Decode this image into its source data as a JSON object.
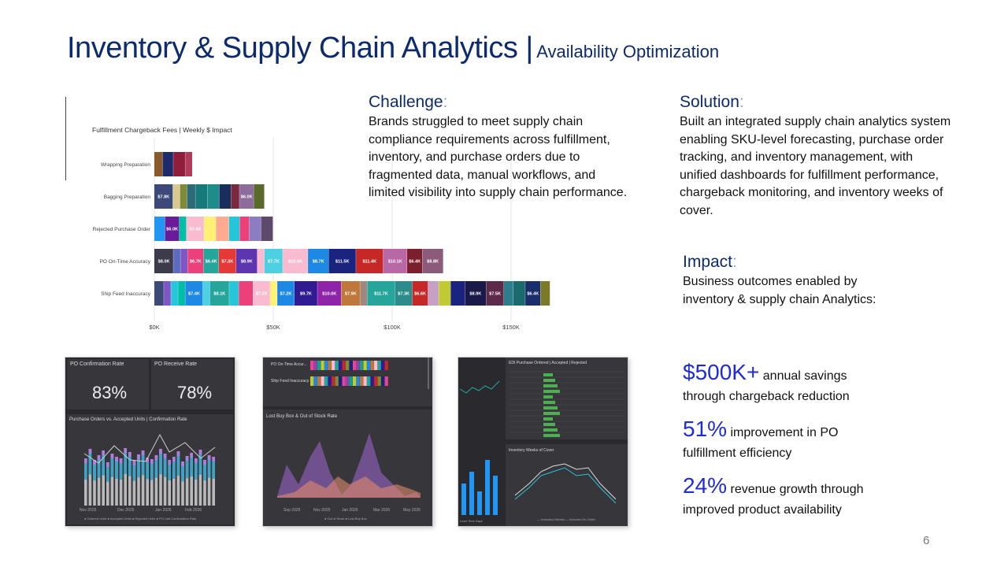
{
  "title": {
    "main": "Inventory & Supply Chain Analytics |",
    "sub": "Availability Optimization"
  },
  "challenge": {
    "heading": "Challenge",
    "colon": ":",
    "body": "Brands struggled to meet supply chain compliance requirements across fulfillment, inventory, and purchase orders due to fragmented data, manual workflows, and limited visibility into supply chain performance."
  },
  "solution": {
    "heading": "Solution",
    "colon": ":",
    "body": "Built an integrated supply chain analytics system enabling SKU-level forecasting, purchase order tracking, and inventory management, with unified dashboards for fulfillment performance, chargeback monitoring, and inventory weeks of cover."
  },
  "impact": {
    "heading": "Impact",
    "colon": ":",
    "body_line1": "Business outcomes enabled by",
    "body_line2": "inventory & supply chain Analytics:"
  },
  "stats": [
    {
      "big": "$500K+",
      "small1": " annual savings",
      "small2": "through chargeback reduction"
    },
    {
      "big": "51%",
      "small1": " improvement in PO",
      "small2": "fulfillment efficiency"
    },
    {
      "big": "24%",
      "small1": " revenue growth through",
      "small2": "improved product availability"
    }
  ],
  "page_number": "6",
  "chart_data": {
    "type": "bar",
    "title": "Fulfillment Chargeback Fees | Weekly $ Impact",
    "categories": [
      "Wrapping Preparation",
      "Bagging Preparation",
      "Rejected Purchase Order",
      "PO On-Time Accuracy",
      "Ship Feed Inaccuracy"
    ],
    "xticks": [
      "$0K",
      "$50K",
      "$100K",
      "$150K"
    ],
    "xlim": [
      0,
      180
    ],
    "stacked": true,
    "palette": [
      "#3e4a6b",
      "#7a5c2e",
      "#2a2f7a",
      "#c0392b",
      "#e84393",
      "#f4d03f",
      "#1abc9c",
      "#8e44ad",
      "#2980b9",
      "#16a085",
      "#f39c12",
      "#34495e",
      "#9b59b6",
      "#55efc4",
      "#fd79a8",
      "#6c5ce7",
      "#00b894",
      "#e17055",
      "#a29bfe",
      "#d35400",
      "#7f8c8d",
      "#27ae60",
      "#c44569",
      "#3d3d6b",
      "#b33939",
      "#218c74",
      "#cc8e35",
      "#706fd3",
      "#474787",
      "#40407a",
      "#2c2c54",
      "#84817a"
    ],
    "rows": [
      {
        "segments": [
          {
            "v": 3.5,
            "c": "#8b5a2b",
            "l": ""
          },
          {
            "v": 4.5,
            "c": "#1f2a6b",
            "l": ""
          },
          {
            "v": 5,
            "c": "#8e1e3c",
            "l": ""
          },
          {
            "v": 3,
            "c": "#b03a5a",
            "l": ""
          }
        ]
      },
      {
        "segments": [
          {
            "v": 7.8,
            "c": "#3c4a7a",
            "l": "$7.8K"
          },
          {
            "v": 3,
            "c": "#d9c98f",
            "l": ""
          },
          {
            "v": 3,
            "c": "#7e8c3a",
            "l": ""
          },
          {
            "v": 3.5,
            "c": "#2d6a7a",
            "l": ""
          },
          {
            "v": 5,
            "c": "#167a7a",
            "l": ""
          },
          {
            "v": 5,
            "c": "#1f8c8c",
            "l": ""
          },
          {
            "v": 5,
            "c": "#1a2e5c",
            "l": ""
          },
          {
            "v": 3.5,
            "c": "#7a2a3c",
            "l": ""
          },
          {
            "v": 6,
            "c": "#8c6c9c",
            "l": "$6.0K"
          },
          {
            "v": 4.5,
            "c": "#5a6a2a",
            "l": ""
          }
        ]
      },
      {
        "segments": [
          {
            "v": 4.5,
            "c": "#2196f3",
            "l": ""
          },
          {
            "v": 6,
            "c": "#6a1b9a",
            "l": "$6.0K"
          },
          {
            "v": 3,
            "c": "#00bfa5",
            "l": ""
          },
          {
            "v": 7.4,
            "c": "#f8bbd0",
            "l": "$7.4K"
          },
          {
            "v": 5,
            "c": "#fff176",
            "l": ""
          },
          {
            "v": 5.5,
            "c": "#ffab91",
            "l": ""
          },
          {
            "v": 4.5,
            "c": "#26c6da",
            "l": ""
          },
          {
            "v": 4,
            "c": "#ec407a",
            "l": ""
          },
          {
            "v": 5,
            "c": "#8e7cc3",
            "l": ""
          },
          {
            "v": 5,
            "c": "#5d4a6b",
            "l": ""
          }
        ]
      },
      {
        "segments": [
          {
            "v": 8,
            "c": "#3b3b4b",
            "l": "$8.0K"
          },
          {
            "v": 3,
            "c": "#5c6bc0",
            "l": ""
          },
          {
            "v": 3,
            "c": "#7e57c2",
            "l": ""
          },
          {
            "v": 6.7,
            "c": "#ec407a",
            "l": "$6.7K"
          },
          {
            "v": 6.4,
            "c": "#26a69a",
            "l": "$6.4K"
          },
          {
            "v": 7.3,
            "c": "#e53935",
            "l": "$7.3K"
          },
          {
            "v": 8.9,
            "c": "#5e35b1",
            "l": "$8.9K"
          },
          {
            "v": 3,
            "c": "#f8bbd0",
            "l": ""
          },
          {
            "v": 7.7,
            "c": "#4dd0e1",
            "l": "$7.7K"
          },
          {
            "v": 10.6,
            "c": "#f8bbd0",
            "l": "$10.6K"
          },
          {
            "v": 8.7,
            "c": "#1e88e5",
            "l": "$8.7K"
          },
          {
            "v": 11.5,
            "c": "#1a237e",
            "l": "$11.5K"
          },
          {
            "v": 11.4,
            "c": "#c62828",
            "l": "$11.4K"
          },
          {
            "v": 10.1,
            "c": "#b968a5",
            "l": "$10.1K"
          },
          {
            "v": 6.4,
            "c": "#7a1f2b",
            "l": "$6.4K"
          },
          {
            "v": 8.8,
            "c": "#8c5a7a",
            "l": "$8.8K"
          }
        ]
      },
      {
        "segments": [
          {
            "v": 4,
            "c": "#3c4a7a",
            "l": ""
          },
          {
            "v": 3,
            "c": "#7e57c2",
            "l": ""
          },
          {
            "v": 3,
            "c": "#26c6da",
            "l": ""
          },
          {
            "v": 3,
            "c": "#00bfa5",
            "l": ""
          },
          {
            "v": 7.4,
            "c": "#1e88e5",
            "l": "$7.4K"
          },
          {
            "v": 3,
            "c": "#4dd0e1",
            "l": ""
          },
          {
            "v": 8.1,
            "c": "#26a69a",
            "l": "$8.1K"
          },
          {
            "v": 4,
            "c": "#26c6da",
            "l": ""
          },
          {
            "v": 6,
            "c": "#ec407a",
            "l": ""
          },
          {
            "v": 7.2,
            "c": "#f8bbd0",
            "l": "$7.2K"
          },
          {
            "v": 3,
            "c": "#fff176",
            "l": ""
          },
          {
            "v": 7.2,
            "c": "#1e88e5",
            "l": "$7.2K"
          },
          {
            "v": 9.7,
            "c": "#311b92",
            "l": "$9.7K"
          },
          {
            "v": 10,
            "c": "#8e24aa",
            "l": "$10.0K"
          },
          {
            "v": 7.9,
            "c": "#c0783a",
            "l": "$7.9K"
          },
          {
            "v": 3,
            "c": "#a1887f",
            "l": ""
          },
          {
            "v": 11.7,
            "c": "#26a69a",
            "l": "$11.7K"
          },
          {
            "v": 7.3,
            "c": "#2e8b8b",
            "l": "$7.3K"
          },
          {
            "v": 6.6,
            "c": "#c62828",
            "l": "$6.6K"
          },
          {
            "v": 4.5,
            "c": "#c7a0c8",
            "l": ""
          },
          {
            "v": 5,
            "c": "#c0ca33",
            "l": ""
          },
          {
            "v": 6,
            "c": "#1a237e",
            "l": ""
          },
          {
            "v": 8.9,
            "c": "#1a1a4a",
            "l": "$8.9K"
          },
          {
            "v": 7.5,
            "c": "#5d2a4a",
            "l": "$7.5K"
          },
          {
            "v": 4,
            "c": "#2e7d8c",
            "l": ""
          },
          {
            "v": 5,
            "c": "#1a6b6b",
            "l": ""
          },
          {
            "v": 6.4,
            "c": "#1a2e6b",
            "l": "$6.4K"
          },
          {
            "v": 4,
            "c": "#7a7a2a",
            "l": ""
          }
        ]
      }
    ]
  },
  "thumbs": {
    "t1": {
      "kpi1_label": "PO Confirmation Rate",
      "kpi1_value": "83%",
      "kpi2_label": "PO Receive Rate",
      "kpi2_value": "78%",
      "chart_title": "Purchase Orders vs. Accepted Units | Confirmation Rate",
      "x1": "Nov 2025",
      "x2": "Dec 2025",
      "x3": "Jan 2026",
      "x4": "Feb 2026",
      "legend": "● Ordered Units  ● Accepted Units  ● Rejected Units  ● PO Unit Confirmation Rate"
    },
    "t2": {
      "row1": "PO On-Time Accur...",
      "row2": "Ship Feed Inaccuracy",
      "chart_title": "Lost Buy Box & Out of Stock Rate",
      "x1": "Sep 2025",
      "x2": "Nov 2025",
      "x3": "Jan 2026",
      "x4": "Mar 2026",
      "x5": "May 2026",
      "legend": "● Out of Stock  ● Lost Buy Box"
    },
    "t3": {
      "table_title": "EDI Purchase Ordered | Accepted | Rejected",
      "chart_title": "Inventory Weeks of Cover",
      "legend": "— Inventory Weeks  — Includes On-Order",
      "left_label": "Lead Time Days"
    }
  }
}
